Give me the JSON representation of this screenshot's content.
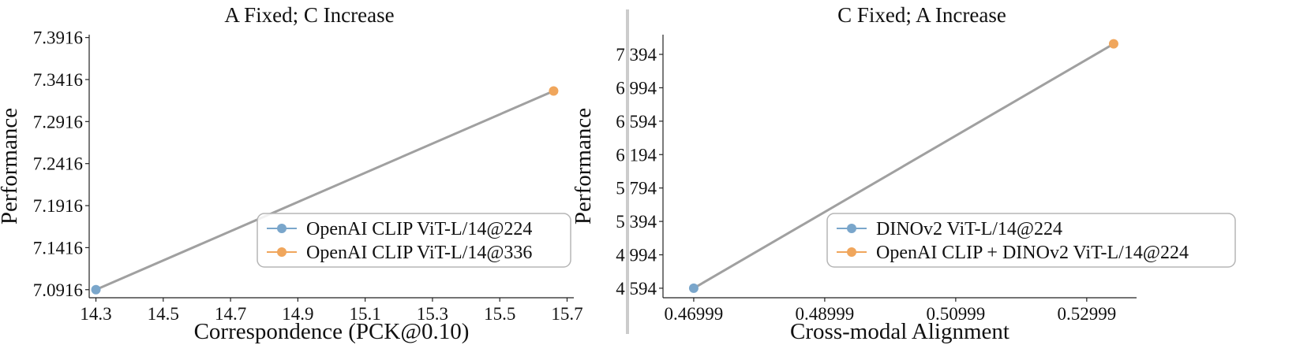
{
  "colors": {
    "series1": "#7aa6cb",
    "series2": "#f0a65c",
    "connector": "#a0a0a0",
    "divider": "#cccccc"
  },
  "chart_data": [
    {
      "type": "line",
      "title": "A Fixed; C Increase",
      "xlabel": "Correspondence (PCK@0.10)",
      "ylabel": "Performance",
      "x_ticks": [
        "14.3",
        "14.5",
        "14.7",
        "14.9",
        "15.1",
        "15.3",
        "15.5",
        "15.7"
      ],
      "y_ticks": [
        "7.0916",
        "7.1416",
        "7.1916",
        "7.2416",
        "7.2916",
        "7.3416",
        "7.3916"
      ],
      "xlim": [
        14.28,
        15.72
      ],
      "ylim": [
        7.082,
        7.395
      ],
      "legend_position": "lower-right",
      "points": [
        {
          "name": "OpenAI CLIP ViT-L/14@224",
          "x": 14.3,
          "y": 7.0916,
          "color": "#7aa6cb"
        },
        {
          "name": "OpenAI CLIP ViT-L/14@336",
          "x": 15.66,
          "y": 7.328,
          "color": "#f0a65c"
        }
      ]
    },
    {
      "type": "line",
      "title": "C Fixed; A Increase",
      "xlabel": "Cross-modal Alignment",
      "ylabel": "Performance",
      "x_ticks": [
        "0.46999",
        "0.48999",
        "0.50999",
        "0.52999"
      ],
      "y_ticks": [
        "4.594",
        "4.994",
        "5.394",
        "5.794",
        "6.194",
        "6.594",
        "6.994",
        "7.394"
      ],
      "xlim": [
        0.4653,
        0.5376
      ],
      "ylim": [
        4.48,
        7.63
      ],
      "legend_position": "lower-right",
      "points": [
        {
          "name": "DINOv2 ViT-L/14@224",
          "x": 0.46999,
          "y": 4.594,
          "color": "#7aa6cb"
        },
        {
          "name": "OpenAI CLIP + DINOv2 ViT-L/14@224",
          "x": 0.5341,
          "y": 7.52,
          "color": "#f0a65c"
        }
      ]
    }
  ]
}
